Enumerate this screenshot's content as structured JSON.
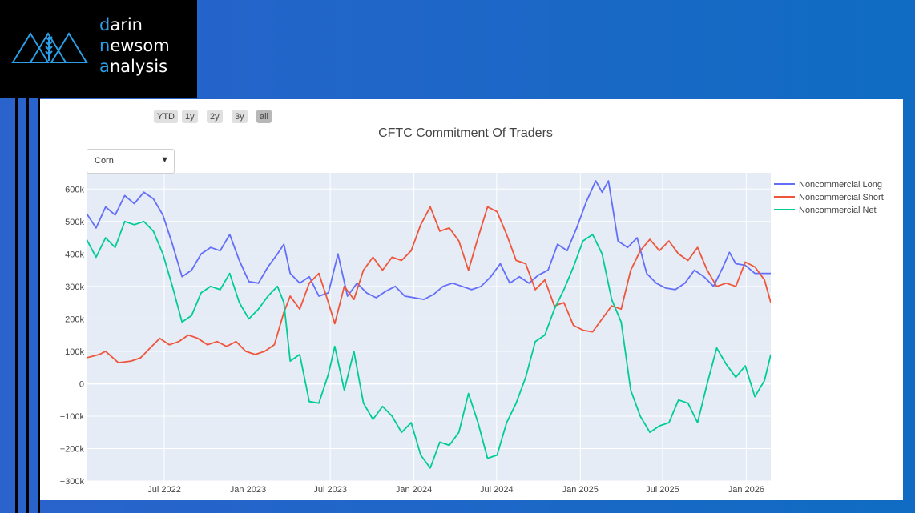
{
  "logo": {
    "line1_accent": "d",
    "line1_rest": "arin",
    "line2_accent": "n",
    "line2_rest": "ewsom",
    "line3_accent": "a",
    "line3_rest": "nalysis"
  },
  "range_buttons": [
    {
      "label": "YTD",
      "active": false
    },
    {
      "label": "1y",
      "active": false
    },
    {
      "label": "2y",
      "active": false
    },
    {
      "label": "3y",
      "active": false
    },
    {
      "label": "all",
      "active": true
    }
  ],
  "commodity_select": {
    "value": "Corn"
  },
  "colors": {
    "long": "#636efa",
    "short": "#ef553b",
    "net": "#00cc96",
    "plot_bg": "#e5ecf6",
    "accent": "#2a9ee6"
  },
  "chart_data": {
    "type": "line",
    "title": "CFTC Commitment Of Traders",
    "xlabel": "",
    "ylabel": "",
    "x_range": [
      "2022-01-11",
      "2026-02-24"
    ],
    "y_range": [
      -300000,
      650000
    ],
    "y_ticks": [
      -300000,
      -200000,
      -100000,
      0,
      100000,
      200000,
      300000,
      400000,
      500000,
      600000
    ],
    "y_tick_labels": [
      "−300k",
      "−200k",
      "−100k",
      "0",
      "100k",
      "200k",
      "300k",
      "400k",
      "500k",
      "600k"
    ],
    "x_ticks": [
      "2022-07-01",
      "2023-01-01",
      "2023-07-01",
      "2024-01-01",
      "2024-07-01",
      "2025-01-01",
      "2025-07-01",
      "2026-01-01"
    ],
    "x_tick_labels": [
      "Jul 2022",
      "Jan 2023",
      "Jul 2023",
      "Jan 2024",
      "Jul 2024",
      "Jan 2025",
      "Jul 2025",
      "Jan 2026"
    ],
    "grid": true,
    "legend_position": "top-right",
    "series": [
      {
        "name": "Noncommercial Long",
        "points": [
          [
            "2022-01-11",
            525000
          ],
          [
            "2022-02-01",
            480000
          ],
          [
            "2022-02-22",
            545000
          ],
          [
            "2022-03-15",
            520000
          ],
          [
            "2022-04-05",
            580000
          ],
          [
            "2022-04-26",
            555000
          ],
          [
            "2022-05-17",
            590000
          ],
          [
            "2022-06-07",
            570000
          ],
          [
            "2022-06-28",
            520000
          ],
          [
            "2022-07-19",
            430000
          ],
          [
            "2022-08-09",
            330000
          ],
          [
            "2022-08-30",
            350000
          ],
          [
            "2022-09-20",
            400000
          ],
          [
            "2022-10-11",
            420000
          ],
          [
            "2022-11-01",
            410000
          ],
          [
            "2022-11-22",
            460000
          ],
          [
            "2022-12-13",
            380000
          ],
          [
            "2023-01-03",
            315000
          ],
          [
            "2023-01-24",
            310000
          ],
          [
            "2023-02-14",
            360000
          ],
          [
            "2023-03-07",
            400000
          ],
          [
            "2023-03-21",
            430000
          ],
          [
            "2023-04-04",
            340000
          ],
          [
            "2023-04-25",
            310000
          ],
          [
            "2023-05-16",
            330000
          ],
          [
            "2023-06-06",
            270000
          ],
          [
            "2023-06-27",
            280000
          ],
          [
            "2023-07-18",
            400000
          ],
          [
            "2023-08-08",
            270000
          ],
          [
            "2023-08-29",
            310000
          ],
          [
            "2023-09-19",
            280000
          ],
          [
            "2023-10-10",
            265000
          ],
          [
            "2023-10-31",
            285000
          ],
          [
            "2023-11-21",
            300000
          ],
          [
            "2023-12-12",
            270000
          ],
          [
            "2024-01-02",
            265000
          ],
          [
            "2024-01-23",
            260000
          ],
          [
            "2024-02-13",
            275000
          ],
          [
            "2024-03-05",
            300000
          ],
          [
            "2024-03-26",
            310000
          ],
          [
            "2024-04-16",
            300000
          ],
          [
            "2024-05-07",
            290000
          ],
          [
            "2024-05-28",
            300000
          ],
          [
            "2024-06-18",
            330000
          ],
          [
            "2024-07-09",
            370000
          ],
          [
            "2024-07-30",
            310000
          ],
          [
            "2024-08-20",
            330000
          ],
          [
            "2024-09-10",
            310000
          ],
          [
            "2024-10-01",
            335000
          ],
          [
            "2024-10-22",
            350000
          ],
          [
            "2024-11-12",
            430000
          ],
          [
            "2024-12-03",
            410000
          ],
          [
            "2024-12-24",
            480000
          ],
          [
            "2025-01-14",
            560000
          ],
          [
            "2025-02-04",
            625000
          ],
          [
            "2025-02-18",
            590000
          ],
          [
            "2025-03-04",
            625000
          ],
          [
            "2025-03-25",
            440000
          ],
          [
            "2025-04-15",
            420000
          ],
          [
            "2025-05-06",
            450000
          ],
          [
            "2025-05-27",
            340000
          ],
          [
            "2025-06-17",
            310000
          ],
          [
            "2025-07-08",
            295000
          ],
          [
            "2025-07-29",
            290000
          ],
          [
            "2025-08-19",
            310000
          ],
          [
            "2025-09-09",
            350000
          ],
          [
            "2025-09-30",
            330000
          ],
          [
            "2025-10-21",
            300000
          ],
          [
            "2025-11-11",
            360000
          ],
          [
            "2025-11-25",
            405000
          ],
          [
            "2025-12-09",
            370000
          ],
          [
            "2025-12-30",
            365000
          ],
          [
            "2026-01-20",
            340000
          ],
          [
            "2026-02-10",
            340000
          ],
          [
            "2026-02-24",
            340000
          ]
        ]
      },
      {
        "name": "Noncommercial Short",
        "points": [
          [
            "2022-01-11",
            80000
          ],
          [
            "2022-02-08",
            90000
          ],
          [
            "2022-02-22",
            100000
          ],
          [
            "2022-03-22",
            65000
          ],
          [
            "2022-04-19",
            70000
          ],
          [
            "2022-05-10",
            80000
          ],
          [
            "2022-05-31",
            110000
          ],
          [
            "2022-06-21",
            140000
          ],
          [
            "2022-07-12",
            120000
          ],
          [
            "2022-08-02",
            130000
          ],
          [
            "2022-08-23",
            150000
          ],
          [
            "2022-09-13",
            140000
          ],
          [
            "2022-10-04",
            120000
          ],
          [
            "2022-10-25",
            130000
          ],
          [
            "2022-11-15",
            115000
          ],
          [
            "2022-12-06",
            130000
          ],
          [
            "2022-12-27",
            100000
          ],
          [
            "2023-01-17",
            90000
          ],
          [
            "2023-02-07",
            100000
          ],
          [
            "2023-02-28",
            120000
          ],
          [
            "2023-03-21",
            220000
          ],
          [
            "2023-04-04",
            270000
          ],
          [
            "2023-04-25",
            230000
          ],
          [
            "2023-05-16",
            310000
          ],
          [
            "2023-06-06",
            340000
          ],
          [
            "2023-06-27",
            250000
          ],
          [
            "2023-07-11",
            185000
          ],
          [
            "2023-08-01",
            300000
          ],
          [
            "2023-08-22",
            260000
          ],
          [
            "2023-09-12",
            350000
          ],
          [
            "2023-10-03",
            390000
          ],
          [
            "2023-10-24",
            350000
          ],
          [
            "2023-11-14",
            390000
          ],
          [
            "2023-12-05",
            380000
          ],
          [
            "2023-12-26",
            410000
          ],
          [
            "2024-01-16",
            490000
          ],
          [
            "2024-02-06",
            545000
          ],
          [
            "2024-02-27",
            470000
          ],
          [
            "2024-03-19",
            480000
          ],
          [
            "2024-04-09",
            440000
          ],
          [
            "2024-04-30",
            350000
          ],
          [
            "2024-05-21",
            450000
          ],
          [
            "2024-06-11",
            545000
          ],
          [
            "2024-07-02",
            530000
          ],
          [
            "2024-07-23",
            460000
          ],
          [
            "2024-08-13",
            380000
          ],
          [
            "2024-09-03",
            370000
          ],
          [
            "2024-09-24",
            290000
          ],
          [
            "2024-10-15",
            320000
          ],
          [
            "2024-11-05",
            240000
          ],
          [
            "2024-11-26",
            250000
          ],
          [
            "2024-12-17",
            180000
          ],
          [
            "2025-01-07",
            165000
          ],
          [
            "2025-01-28",
            160000
          ],
          [
            "2025-02-18",
            200000
          ],
          [
            "2025-03-11",
            240000
          ],
          [
            "2025-04-01",
            230000
          ],
          [
            "2025-04-22",
            350000
          ],
          [
            "2025-05-13",
            410000
          ],
          [
            "2025-06-03",
            445000
          ],
          [
            "2025-06-24",
            410000
          ],
          [
            "2025-07-15",
            440000
          ],
          [
            "2025-08-05",
            400000
          ],
          [
            "2025-08-26",
            380000
          ],
          [
            "2025-09-16",
            420000
          ],
          [
            "2025-10-07",
            350000
          ],
          [
            "2025-10-28",
            300000
          ],
          [
            "2025-11-18",
            310000
          ],
          [
            "2025-12-09",
            300000
          ],
          [
            "2025-12-30",
            375000
          ],
          [
            "2026-01-20",
            360000
          ],
          [
            "2026-02-10",
            320000
          ],
          [
            "2026-02-24",
            250000
          ]
        ]
      },
      {
        "name": "Noncommercial Net",
        "points": [
          [
            "2022-01-11",
            445000
          ],
          [
            "2022-02-01",
            390000
          ],
          [
            "2022-02-22",
            450000
          ],
          [
            "2022-03-15",
            420000
          ],
          [
            "2022-04-05",
            500000
          ],
          [
            "2022-04-26",
            490000
          ],
          [
            "2022-05-17",
            500000
          ],
          [
            "2022-06-07",
            470000
          ],
          [
            "2022-06-28",
            400000
          ],
          [
            "2022-07-19",
            300000
          ],
          [
            "2022-08-09",
            190000
          ],
          [
            "2022-08-30",
            210000
          ],
          [
            "2022-09-20",
            280000
          ],
          [
            "2022-10-11",
            300000
          ],
          [
            "2022-11-01",
            290000
          ],
          [
            "2022-11-22",
            340000
          ],
          [
            "2022-12-13",
            250000
          ],
          [
            "2023-01-03",
            200000
          ],
          [
            "2023-01-24",
            230000
          ],
          [
            "2023-02-14",
            270000
          ],
          [
            "2023-03-07",
            300000
          ],
          [
            "2023-03-21",
            250000
          ],
          [
            "2023-04-04",
            70000
          ],
          [
            "2023-04-25",
            90000
          ],
          [
            "2023-05-16",
            -55000
          ],
          [
            "2023-06-06",
            -60000
          ],
          [
            "2023-06-27",
            30000
          ],
          [
            "2023-07-11",
            115000
          ],
          [
            "2023-08-01",
            -20000
          ],
          [
            "2023-08-22",
            100000
          ],
          [
            "2023-09-12",
            -60000
          ],
          [
            "2023-10-03",
            -110000
          ],
          [
            "2023-10-24",
            -70000
          ],
          [
            "2023-11-14",
            -100000
          ],
          [
            "2023-12-05",
            -150000
          ],
          [
            "2023-12-26",
            -120000
          ],
          [
            "2024-01-16",
            -220000
          ],
          [
            "2024-02-06",
            -260000
          ],
          [
            "2024-02-27",
            -180000
          ],
          [
            "2024-03-19",
            -190000
          ],
          [
            "2024-04-09",
            -150000
          ],
          [
            "2024-04-30",
            -30000
          ],
          [
            "2024-05-21",
            -120000
          ],
          [
            "2024-06-11",
            -230000
          ],
          [
            "2024-07-02",
            -220000
          ],
          [
            "2024-07-23",
            -120000
          ],
          [
            "2024-08-13",
            -60000
          ],
          [
            "2024-09-03",
            20000
          ],
          [
            "2024-09-24",
            130000
          ],
          [
            "2024-10-15",
            150000
          ],
          [
            "2024-11-05",
            230000
          ],
          [
            "2024-11-26",
            290000
          ],
          [
            "2024-12-17",
            360000
          ],
          [
            "2025-01-07",
            440000
          ],
          [
            "2025-01-28",
            460000
          ],
          [
            "2025-02-18",
            400000
          ],
          [
            "2025-03-11",
            260000
          ],
          [
            "2025-04-01",
            190000
          ],
          [
            "2025-04-22",
            -20000
          ],
          [
            "2025-05-13",
            -100000
          ],
          [
            "2025-06-03",
            -150000
          ],
          [
            "2025-06-24",
            -130000
          ],
          [
            "2025-07-15",
            -120000
          ],
          [
            "2025-08-05",
            -50000
          ],
          [
            "2025-08-26",
            -60000
          ],
          [
            "2025-09-16",
            -120000
          ],
          [
            "2025-10-07",
            0
          ],
          [
            "2025-10-28",
            110000
          ],
          [
            "2025-11-18",
            60000
          ],
          [
            "2025-12-09",
            20000
          ],
          [
            "2025-12-30",
            55000
          ],
          [
            "2026-01-20",
            -40000
          ],
          [
            "2026-02-10",
            10000
          ],
          [
            "2026-02-24",
            90000
          ]
        ]
      }
    ]
  }
}
